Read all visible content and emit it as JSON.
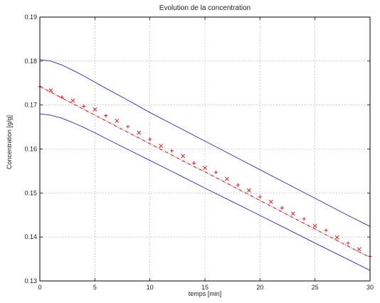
{
  "chart_data": {
    "type": "line",
    "title": "Evolution de la concentration",
    "xlabel": "temps [min]",
    "ylabel": "Concentration [g/g]",
    "xlim": [
      0,
      30
    ],
    "ylim": [
      0.13,
      0.19
    ],
    "xticks": [
      0,
      5,
      10,
      15,
      20,
      25,
      30
    ],
    "yticks": [
      0.13,
      0.14,
      0.15,
      0.16,
      0.17,
      0.18,
      0.19
    ],
    "xtick_labels": [
      "0",
      "5",
      "10",
      "15",
      "20",
      "25",
      "30"
    ],
    "ytick_labels": [
      "0.13",
      "0.14",
      "0.15",
      "0.16",
      "0.17",
      "0.18",
      "0.19"
    ],
    "grid": true,
    "series": [
      {
        "style": "upper-bound",
        "color": "#2b2bb0",
        "x": [
          0,
          1,
          2,
          3,
          4,
          5,
          6,
          8,
          10,
          12,
          15,
          18,
          20,
          22,
          25,
          28,
          30
        ],
        "y": [
          0.1803,
          0.18,
          0.1791,
          0.1779,
          0.1766,
          0.1752,
          0.1738,
          0.1711,
          0.1683,
          0.1657,
          0.1618,
          0.1579,
          0.1553,
          0.1527,
          0.1488,
          0.1449,
          0.1424
        ]
      },
      {
        "style": "estimate",
        "color": "#dd2222",
        "x": [
          0,
          1,
          2,
          3,
          4,
          5,
          6,
          7,
          8,
          9,
          10,
          11,
          12,
          13,
          14,
          15,
          16,
          17,
          18,
          19,
          20,
          21,
          22,
          23,
          24,
          25,
          26,
          27,
          28,
          29,
          30
        ],
        "y": [
          0.1742,
          0.1729,
          0.1716,
          0.1703,
          0.169,
          0.1677,
          0.1664,
          0.1651,
          0.1638,
          0.1625,
          0.1612,
          0.1599,
          0.1586,
          0.1573,
          0.156,
          0.1548,
          0.1535,
          0.1522,
          0.1509,
          0.1496,
          0.1483,
          0.147,
          0.1457,
          0.1444,
          0.1431,
          0.1418,
          0.1405,
          0.1392,
          0.1379,
          0.1366,
          0.1354
        ]
      },
      {
        "style": "lower-bound",
        "color": "#2b2bb0",
        "x": [
          0,
          1,
          2,
          3,
          4,
          5,
          6,
          8,
          10,
          12,
          15,
          18,
          20,
          22,
          25,
          28,
          30
        ],
        "y": [
          0.168,
          0.1677,
          0.167,
          0.166,
          0.1649,
          0.1637,
          0.1624,
          0.1599,
          0.1574,
          0.1549,
          0.1511,
          0.1474,
          0.1449,
          0.1424,
          0.1386,
          0.1349,
          0.1324
        ]
      }
    ],
    "measurements": {
      "color": "#dd2222",
      "markers": [
        "+",
        "x"
      ],
      "x": [
        0,
        1,
        2,
        3,
        4,
        5,
        6,
        7,
        8,
        9,
        10,
        11,
        12,
        13,
        14,
        15,
        16,
        17,
        18,
        19,
        20,
        21,
        22,
        23,
        24,
        25,
        26,
        27,
        28,
        29,
        30
      ],
      "y": [
        0.1742,
        0.1733,
        0.1718,
        0.171,
        0.1697,
        0.169,
        0.1676,
        0.1664,
        0.1651,
        0.1637,
        0.1622,
        0.1607,
        0.1596,
        0.1584,
        0.1568,
        0.1557,
        0.1547,
        0.1532,
        0.1518,
        0.1506,
        0.1491,
        0.148,
        0.1466,
        0.1453,
        0.1441,
        0.1425,
        0.1415,
        0.1399,
        0.1386,
        0.1372,
        0.1356
      ]
    }
  }
}
